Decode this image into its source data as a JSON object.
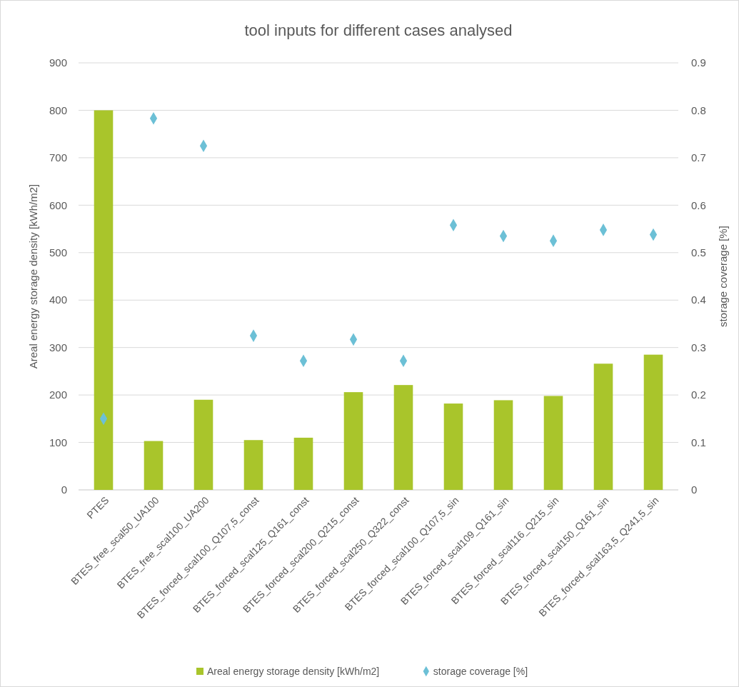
{
  "chart_data": {
    "type": "bar",
    "title": "tool inputs for different cases analysed",
    "ylabel": "Areal energy storage density [kWh/m2]",
    "y2label": "storage coverage [%]",
    "categories": [
      "PTES",
      "BTES_free_scal50_UA100",
      "BTES_free_scal100_UA200",
      "BTES_forced_scal100_Q107,5_const",
      "BTES_forced_scal125_Q161_const",
      "BTES_forced_scal200_Q215_const",
      "BTES_forced_scal250_Q322_const",
      "BTES_forced_scal100_Q107,5_sin",
      "BTES_forced_scal109_Q161_sin",
      "BTES_forced_scal116_Q215_sin",
      "BTES_forced_scal150_Q161_sin",
      "BTES_forced_scal163,5_Q241,5_sin"
    ],
    "series": [
      {
        "name": "Areal energy storage density [kWh/m2]",
        "color": "#a9c52b",
        "values": [
          800,
          103,
          190,
          105,
          110,
          206,
          221,
          182,
          189,
          198,
          266,
          285
        ]
      },
      {
        "name": "storage coverage [%]",
        "type": "scatter",
        "axis": "y2",
        "marker": "diamond",
        "color": "#6cc0d6",
        "values": [
          0.15,
          0.783,
          0.725,
          0.325,
          0.272,
          0.317,
          0.272,
          0.558,
          0.535,
          0.525,
          0.548,
          0.538
        ]
      }
    ],
    "ylim": [
      0,
      900
    ],
    "yticks": [
      0,
      100,
      200,
      300,
      400,
      500,
      600,
      700,
      800,
      900
    ],
    "y2lim": [
      0,
      0.9
    ],
    "y2ticks": [
      0,
      0.1,
      0.2,
      0.3,
      0.4,
      0.5,
      0.6,
      0.7,
      0.8,
      0.9
    ],
    "grid": "y",
    "legend": "bottom"
  }
}
